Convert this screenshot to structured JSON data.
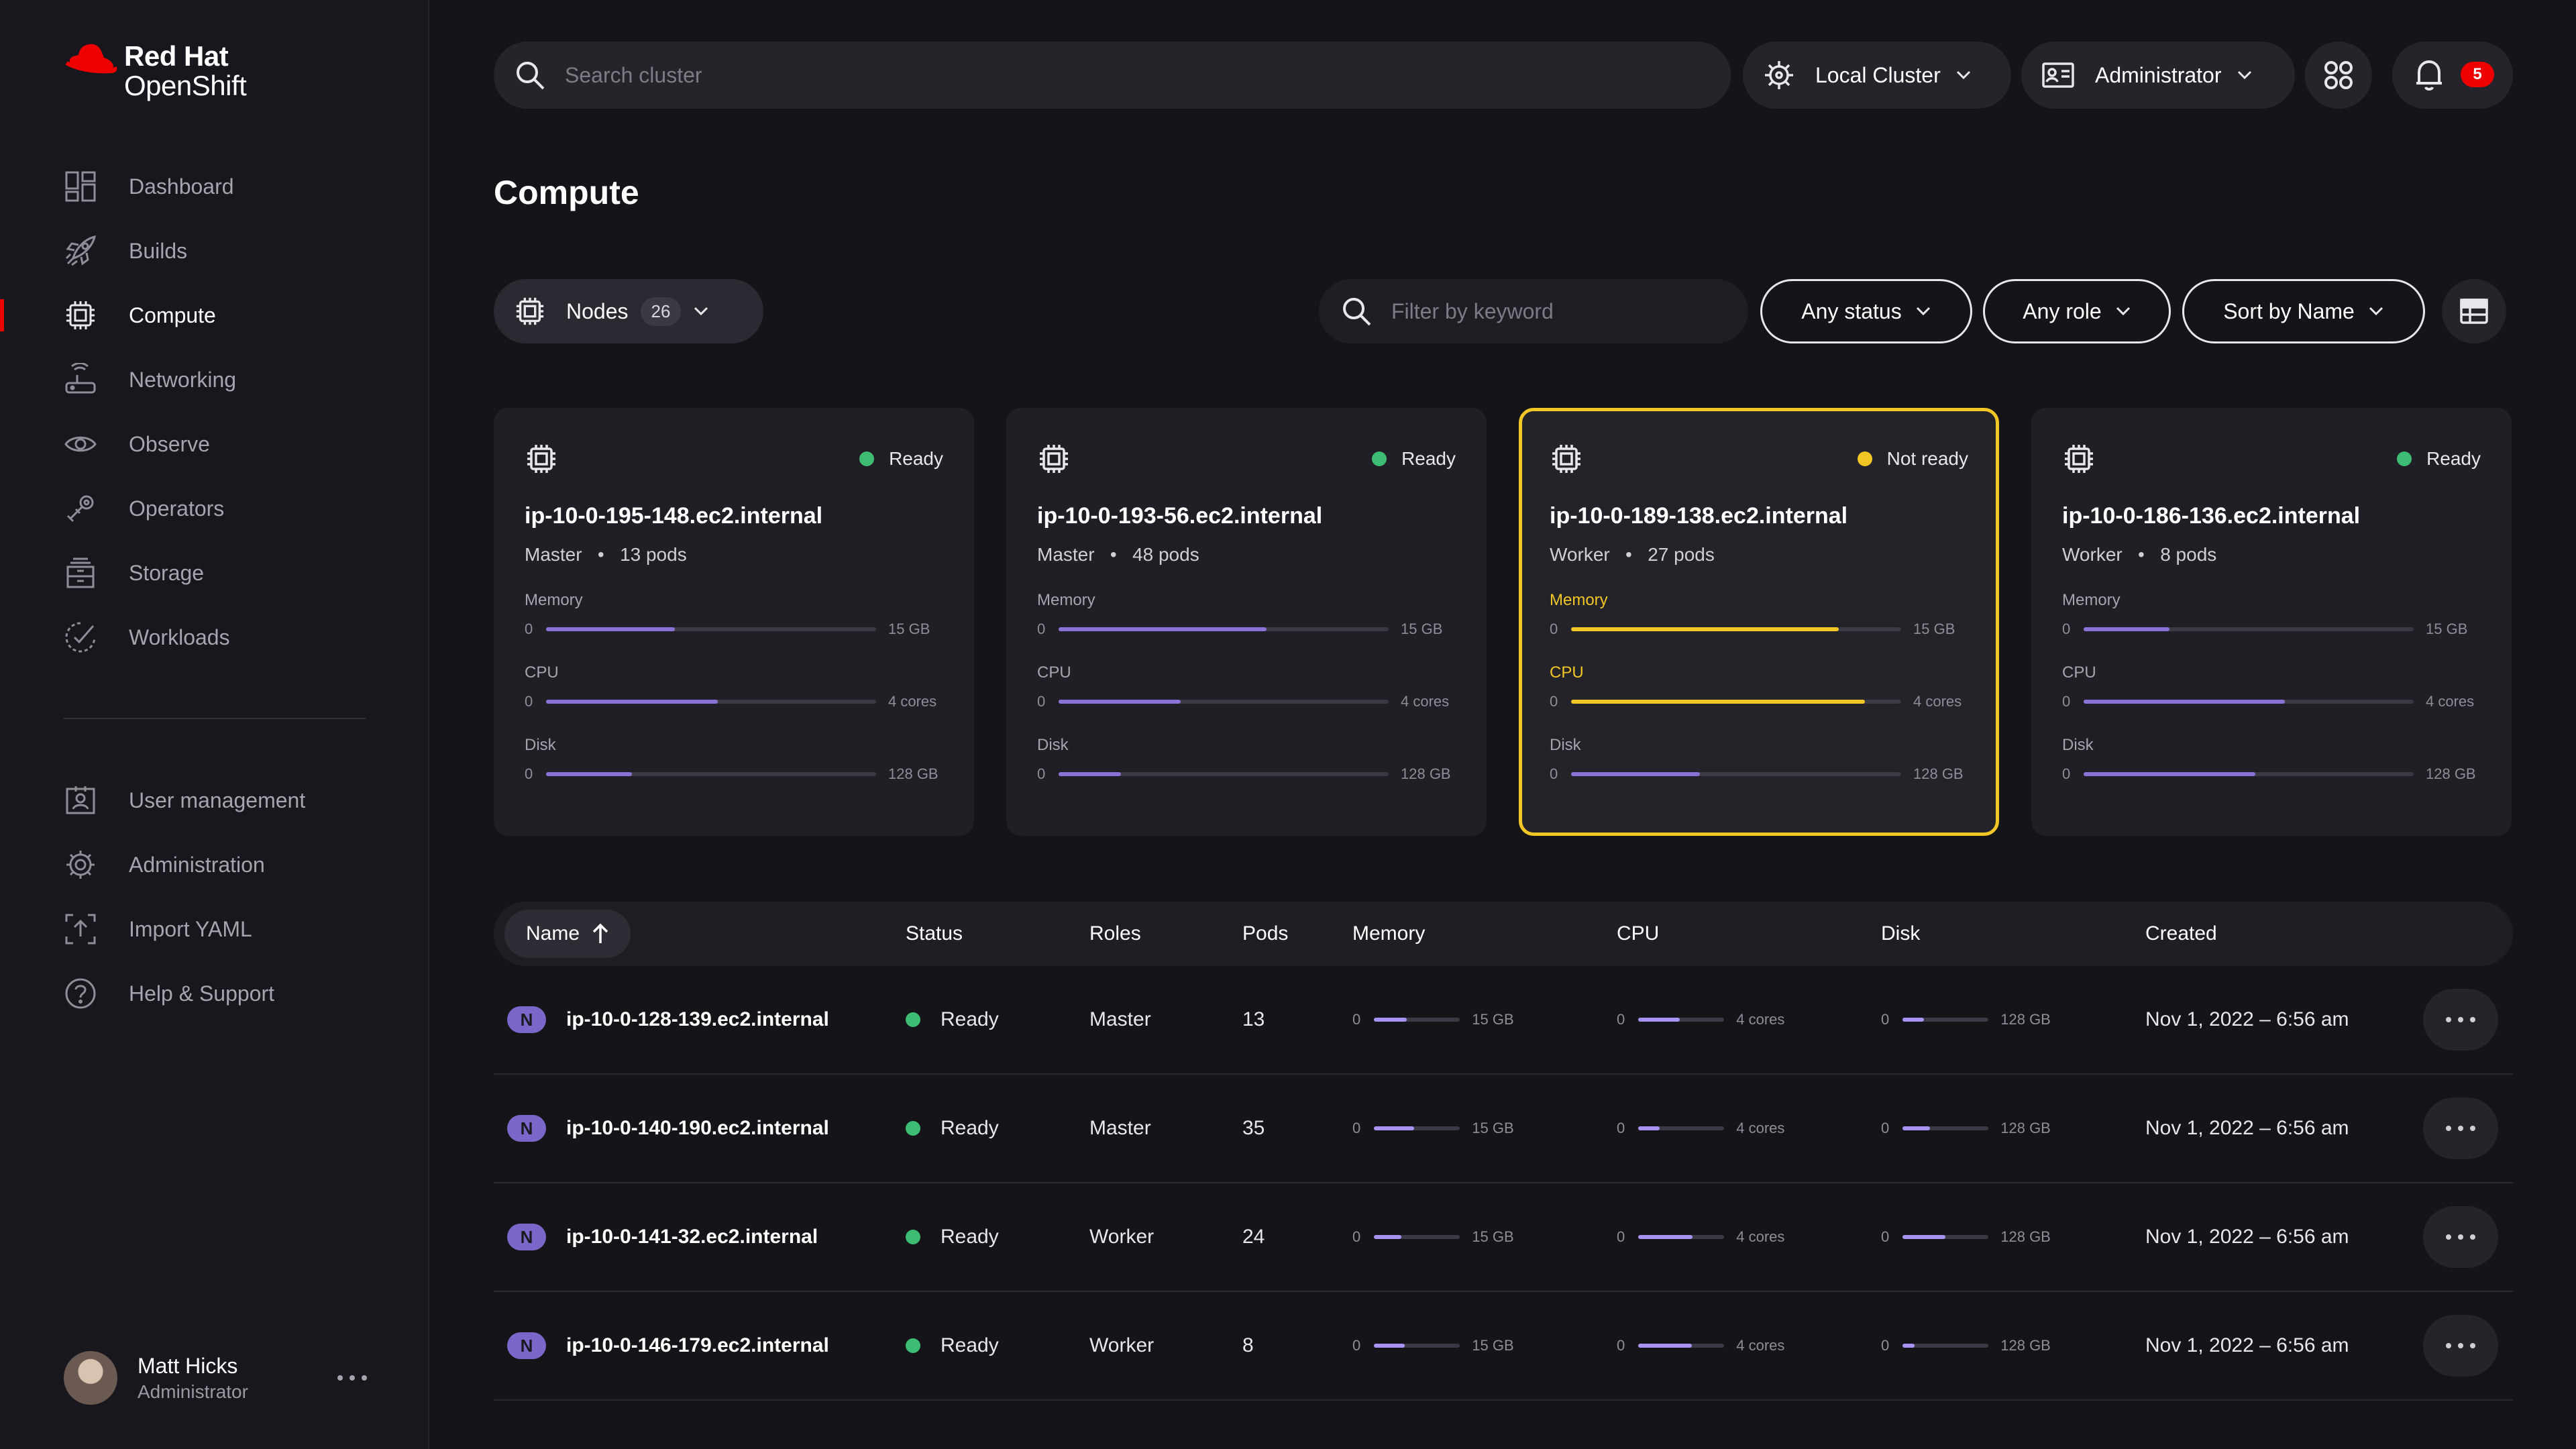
{
  "brand": {
    "line1": "Red Hat",
    "line2": "OpenShift",
    "color": "#ee0000"
  },
  "sidebar": {
    "items": [
      {
        "label": "Dashboard",
        "icon": "dashboard-icon"
      },
      {
        "label": "Builds",
        "icon": "rocket-icon"
      },
      {
        "label": "Compute",
        "icon": "chip-icon",
        "active": true
      },
      {
        "label": "Networking",
        "icon": "router-icon"
      },
      {
        "label": "Observe",
        "icon": "eye-icon"
      },
      {
        "label": "Operators",
        "icon": "operators-icon"
      },
      {
        "label": "Storage",
        "icon": "storage-icon"
      },
      {
        "label": "Workloads",
        "icon": "workloads-icon"
      }
    ],
    "secondary": [
      {
        "label": "User management",
        "icon": "user-management-icon"
      },
      {
        "label": "Administration",
        "icon": "gear-icon"
      },
      {
        "label": "Import YAML",
        "icon": "import-icon"
      },
      {
        "label": "Help & Support",
        "icon": "help-icon"
      }
    ],
    "user": {
      "name": "Matt Hicks",
      "role": "Administrator"
    }
  },
  "topbar": {
    "search_placeholder": "Search cluster",
    "cluster": "Local Cluster",
    "perspective": "Administrator",
    "notifications": "5"
  },
  "page": {
    "title": "Compute"
  },
  "toolbar": {
    "resource": "Nodes",
    "resource_count": "26",
    "filter_placeholder": "Filter by keyword",
    "status_filter": "Any status",
    "role_filter": "Any role",
    "sort": "Sort by Name"
  },
  "cards": [
    {
      "status": "Ready",
      "name": "ip-10-0-195-148.ec2.internal",
      "role": "Master",
      "pods": "13 pods",
      "metrics": [
        {
          "label": "Memory",
          "min": "0",
          "max": "15 GB",
          "fill": 0.39
        },
        {
          "label": "CPU",
          "min": "0",
          "max": "4 cores",
          "fill": 0.52
        },
        {
          "label": "Disk",
          "min": "0",
          "max": "128 GB",
          "fill": 0.26
        }
      ]
    },
    {
      "status": "Ready",
      "name": "ip-10-0-193-56.ec2.internal",
      "role": "Master",
      "pods": "48 pods",
      "metrics": [
        {
          "label": "Memory",
          "min": "0",
          "max": "15 GB",
          "fill": 0.63
        },
        {
          "label": "CPU",
          "min": "0",
          "max": "4 cores",
          "fill": 0.37
        },
        {
          "label": "Disk",
          "min": "0",
          "max": "128 GB",
          "fill": 0.19
        }
      ]
    },
    {
      "status": "Not ready",
      "name": "ip-10-0-189-138.ec2.internal",
      "role": "Worker",
      "pods": "27 pods",
      "warning": true,
      "metrics": [
        {
          "label": "Memory",
          "min": "0",
          "max": "15 GB",
          "fill": 0.81
        },
        {
          "label": "CPU",
          "min": "0",
          "max": "4 cores",
          "fill": 0.89
        },
        {
          "label": "Disk",
          "min": "0",
          "max": "128 GB",
          "fill": 0.39
        }
      ]
    },
    {
      "status": "Ready",
      "name": "ip-10-0-186-136.ec2.internal",
      "role": "Worker",
      "pods": "8 pods",
      "metrics": [
        {
          "label": "Memory",
          "min": "0",
          "max": "15 GB",
          "fill": 0.26
        },
        {
          "label": "CPU",
          "min": "0",
          "max": "4 cores",
          "fill": 0.61
        },
        {
          "label": "Disk",
          "min": "0",
          "max": "128 GB",
          "fill": 0.52
        }
      ]
    }
  ],
  "table": {
    "columns": [
      "Name",
      "Status",
      "Roles",
      "Pods",
      "Memory",
      "CPU",
      "Disk",
      "Created"
    ],
    "rows": [
      {
        "badge": "N",
        "name": "ip-10-0-128-139.ec2.internal",
        "status": "Ready",
        "role": "Master",
        "pods": "13",
        "memory": {
          "min": "0",
          "max": "15 GB",
          "fill": 0.38
        },
        "cpu": {
          "min": "0",
          "max": "4 cores",
          "fill": 0.48
        },
        "disk": {
          "min": "0",
          "max": "128 GB",
          "fill": 0.25
        },
        "created": "Nov 1, 2022 – 6:56 am"
      },
      {
        "badge": "N",
        "name": "ip-10-0-140-190.ec2.internal",
        "status": "Ready",
        "role": "Master",
        "pods": "35",
        "memory": {
          "min": "0",
          "max": "15 GB",
          "fill": 0.47
        },
        "cpu": {
          "min": "0",
          "max": "4 cores",
          "fill": 0.25
        },
        "disk": {
          "min": "0",
          "max": "128 GB",
          "fill": 0.32
        },
        "created": "Nov 1, 2022 – 6:56 am"
      },
      {
        "badge": "N",
        "name": "ip-10-0-141-32.ec2.internal",
        "status": "Ready",
        "role": "Worker",
        "pods": "24",
        "memory": {
          "min": "0",
          "max": "15 GB",
          "fill": 0.32
        },
        "cpu": {
          "min": "0",
          "max": "4 cores",
          "fill": 0.63
        },
        "disk": {
          "min": "0",
          "max": "128 GB",
          "fill": 0.5
        },
        "created": "Nov 1, 2022 – 6:56 am"
      },
      {
        "badge": "N",
        "name": "ip-10-0-146-179.ec2.internal",
        "status": "Ready",
        "role": "Worker",
        "pods": "8",
        "memory": {
          "min": "0",
          "max": "15 GB",
          "fill": 0.36
        },
        "cpu": {
          "min": "0",
          "max": "4 cores",
          "fill": 0.62
        },
        "disk": {
          "min": "0",
          "max": "128 GB",
          "fill": 0.14
        },
        "created": "Nov 1, 2022 – 6:56 am"
      }
    ]
  }
}
